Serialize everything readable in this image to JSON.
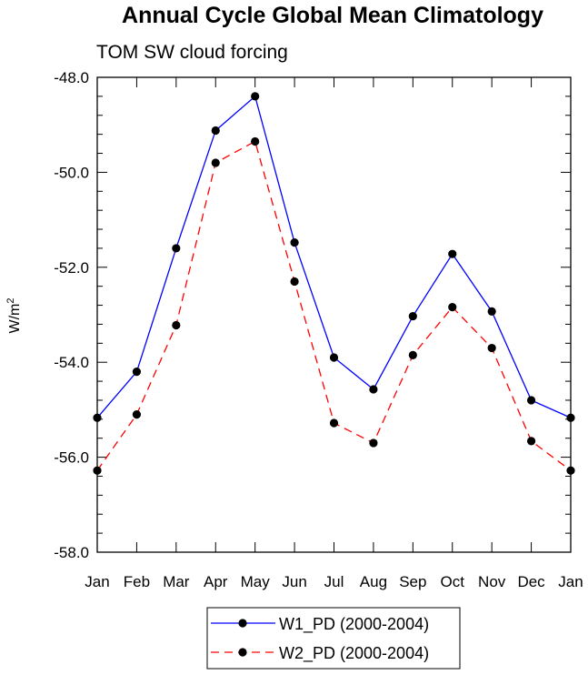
{
  "chart_data": {
    "type": "line",
    "title": "Annual Cycle Global Mean Climatology",
    "subtitle": "TOM SW cloud forcing",
    "ylabel": "W/m",
    "ylabel_sup": "2",
    "xlabel": "",
    "categories": [
      "Jan",
      "Feb",
      "Mar",
      "Apr",
      "May",
      "Jun",
      "Jul",
      "Aug",
      "Sep",
      "Oct",
      "Nov",
      "Dec",
      "Jan"
    ],
    "ylim": [
      -58.0,
      -48.0
    ],
    "yticks": [
      -58.0,
      -56.0,
      -54.0,
      -52.0,
      -50.0,
      -48.0
    ],
    "ytick_labels": [
      "-58.0",
      "-56.0",
      "-54.0",
      "-52.0",
      "-50.0",
      "-48.0"
    ],
    "grid": false,
    "legend_position": "bottom-center",
    "series": [
      {
        "name": "W1_PD (2000-2004)",
        "color": "#0000ff",
        "dash": "solid",
        "values": [
          -55.17,
          -54.2,
          -51.6,
          -49.12,
          -48.4,
          -51.48,
          -53.9,
          -54.57,
          -53.03,
          -51.72,
          -52.93,
          -54.8,
          -55.17
        ]
      },
      {
        "name": "W2_PD (2000-2004)",
        "color": "#ff0000",
        "dash": "dashed",
        "values": [
          -56.28,
          -55.1,
          -53.22,
          -49.8,
          -49.35,
          -52.3,
          -55.28,
          -55.7,
          -53.85,
          -52.84,
          -53.7,
          -55.66,
          -56.28
        ]
      }
    ]
  }
}
